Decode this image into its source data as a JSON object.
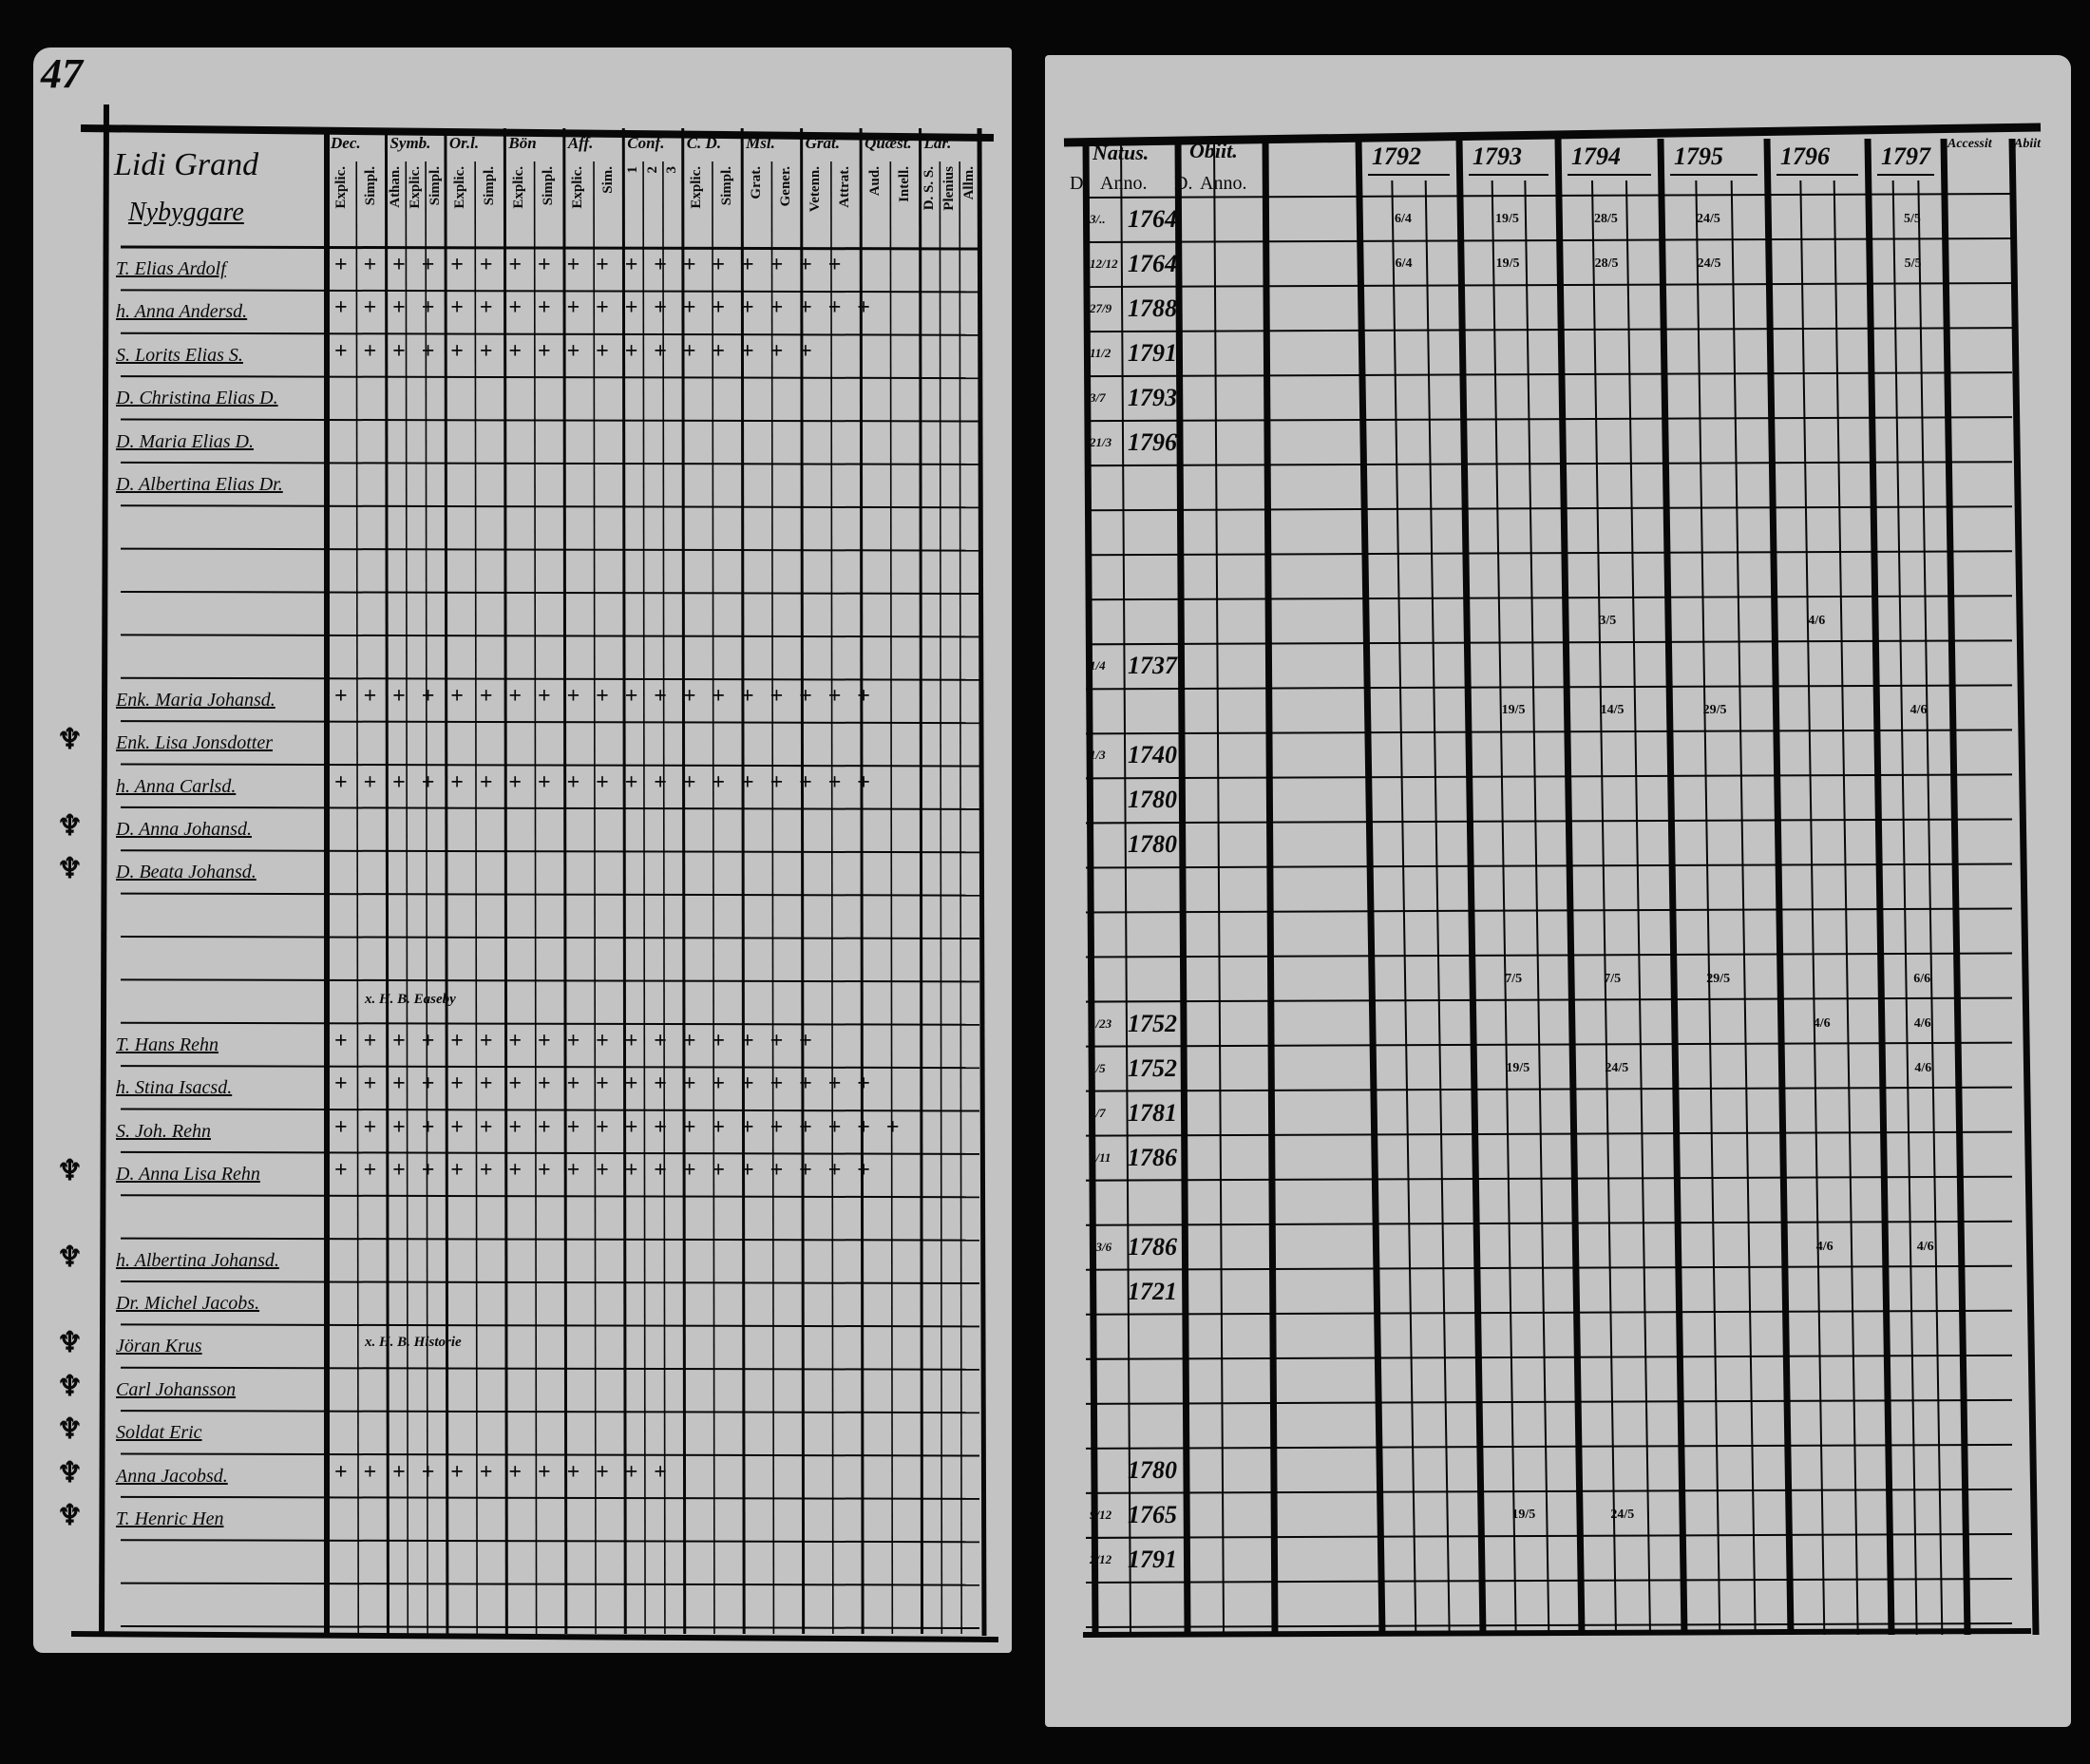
{
  "page_number": "47",
  "left": {
    "household_heading": "Lidi Grand",
    "subheading": "Nybyggare",
    "column_groups": [
      {
        "label": "Dec.",
        "sub": [
          "Explic.",
          "Simpl."
        ]
      },
      {
        "label": "Symb.",
        "sub": [
          "Athan.",
          "Explic.",
          "Simpl."
        ]
      },
      {
        "label": "Or.l.",
        "sub": [
          "Explic.",
          "Simpl."
        ]
      },
      {
        "label": "Bön",
        "sub": [
          "Explic.",
          "Simpl."
        ]
      },
      {
        "label": "Aff.",
        "sub": [
          "Explic.",
          "Sim."
        ]
      },
      {
        "label": "Conf.",
        "sub": [
          "1",
          "2",
          "3"
        ]
      },
      {
        "label": "C. D.",
        "sub": [
          "Explic.",
          "Simpl."
        ]
      },
      {
        "label": "Msl.",
        "sub": [
          "Grat.",
          "Gener."
        ]
      },
      {
        "label": "Grat.",
        "sub": [
          "Vetenn.",
          "Attrat."
        ]
      },
      {
        "label": "Quæst.",
        "sub": [
          "Aud.",
          "Intell."
        ]
      },
      {
        "label": "Lär.",
        "sub": [
          "D. S. S.",
          "Plenius",
          "Allm."
        ]
      }
    ],
    "rows": [
      {
        "name": "T. Elias Ardolf",
        "marks": 18,
        "symbol": ""
      },
      {
        "name": "h. Anna Andersd.",
        "marks": 19,
        "symbol": ""
      },
      {
        "name": "S. Lorits Elias S.",
        "marks": 17,
        "symbol": ""
      },
      {
        "name": "D. Christina Elias D.",
        "marks": 0,
        "symbol": ""
      },
      {
        "name": "D. Maria Elias D.",
        "marks": 0,
        "symbol": ""
      },
      {
        "name": "D. Albertina Elias Dr.",
        "marks": 0,
        "symbol": ""
      },
      {
        "name": "",
        "marks": 0,
        "symbol": ""
      },
      {
        "name": "",
        "marks": 0,
        "symbol": ""
      },
      {
        "name": "",
        "marks": 0,
        "symbol": ""
      },
      {
        "name": "",
        "marks": 0,
        "symbol": ""
      },
      {
        "name": "Enk. Maria Johansd.",
        "marks": 19,
        "symbol": ""
      },
      {
        "name": "Enk. Lisa Jonsdotter",
        "marks": 0,
        "symbol": "♆"
      },
      {
        "name": "h. Anna Carlsd.",
        "marks": 19,
        "symbol": ""
      },
      {
        "name": "D. Anna Johansd.",
        "marks": 0,
        "symbol": "♆"
      },
      {
        "name": "D. Beata Johansd.",
        "marks": 0,
        "symbol": "♆"
      },
      {
        "name": "",
        "marks": 0,
        "symbol": ""
      },
      {
        "name": "",
        "marks": 0,
        "symbol": ""
      },
      {
        "name": "",
        "marks": 0,
        "symbol": ""
      },
      {
        "name": "T. Hans Rehn",
        "marks": 17,
        "note": "x. H. B. Easeby",
        "symbol": ""
      },
      {
        "name": "h. Stina Isacsd.",
        "marks": 19,
        "symbol": ""
      },
      {
        "name": "S. Joh. Rehn",
        "marks": 20,
        "symbol": ""
      },
      {
        "name": "D. Anna Lisa Rehn",
        "marks": 19,
        "symbol": "♆"
      },
      {
        "name": "",
        "marks": 0,
        "symbol": ""
      },
      {
        "name": "h. Albertina Johansd.",
        "marks": 0,
        "symbol": "♆"
      },
      {
        "name": "Dr. Michel Jacobs.",
        "marks": 0,
        "symbol": ""
      },
      {
        "name": "Jöran Krus",
        "marks": 0,
        "note": "x. H. B. Historie",
        "symbol": "♆"
      },
      {
        "name": "Carl Johansson",
        "marks": 0,
        "symbol": "♆"
      },
      {
        "name": "Soldat Eric",
        "marks": 0,
        "symbol": "♆"
      },
      {
        "name": "Anna Jacobsd.",
        "marks": 12,
        "symbol": "♆"
      },
      {
        "name": "T. Henric Hen",
        "marks": 0,
        "symbol": "♆"
      },
      {
        "name": "",
        "marks": 0,
        "symbol": ""
      },
      {
        "name": "",
        "marks": 0,
        "symbol": ""
      }
    ]
  },
  "right": {
    "natus_label": "Natus.",
    "obiit_label": "Obiit.",
    "day_label": "D.",
    "anno_label": "Anno.",
    "years": [
      "1792",
      "1793",
      "1794",
      "1795",
      "1796",
      "1797"
    ],
    "accessit_label": "Accessit",
    "abiit_label": "Abiit",
    "rows": [
      {
        "day": "3/..",
        "anno": "1764",
        "notes": {
          "1792": "6/4",
          "1793": "19/5",
          "1794": "28/5",
          "1795": "24/5",
          "1797": "5/5"
        }
      },
      {
        "day": "12/12",
        "anno": "1764",
        "notes": {
          "1792": "6/4",
          "1793": "19/5",
          "1794": "28/5",
          "1795": "24/5",
          "1797": "5/5"
        }
      },
      {
        "day": "27/9",
        "anno": "1788",
        "notes": {}
      },
      {
        "day": "11/2",
        "anno": "1791",
        "notes": {}
      },
      {
        "day": "3/7",
        "anno": "1793",
        "notes": {}
      },
      {
        "day": "21/3",
        "anno": "1796",
        "notes": {}
      },
      {
        "day": "",
        "anno": "",
        "notes": {}
      },
      {
        "day": "",
        "anno": "",
        "notes": {}
      },
      {
        "day": "",
        "anno": "",
        "notes": {}
      },
      {
        "day": "",
        "anno": "",
        "notes": {
          "1794": "3/5",
          "1796": "4/6"
        }
      },
      {
        "day": "1/4",
        "anno": "1737",
        "notes": {}
      },
      {
        "day": "",
        "anno": "",
        "notes": {
          "1793": "19/5",
          "1794": "14/5",
          "1795": "29/5",
          "1797": "4/6"
        }
      },
      {
        "day": "1/3",
        "anno": "1740",
        "notes": {}
      },
      {
        "day": "",
        "anno": "1780",
        "notes": {}
      },
      {
        "day": "",
        "anno": "1780",
        "notes": {}
      },
      {
        "day": "",
        "anno": "",
        "notes": {}
      },
      {
        "day": "",
        "anno": "",
        "notes": {}
      },
      {
        "day": "",
        "anno": "",
        "notes": {
          "1793": "7/5",
          "1794": "7/5",
          "1795": "29/5",
          "1797": "6/6"
        }
      },
      {
        "day": "1/23",
        "anno": "1752",
        "notes": {
          "1796": "4/6",
          "1797": "4/6"
        }
      },
      {
        "day": "1/5",
        "anno": "1752",
        "notes": {
          "1793": "19/5",
          "1794": "24/5",
          "1797": "4/6"
        }
      },
      {
        "day": "5/7",
        "anno": "1781",
        "notes": {}
      },
      {
        "day": "9/11",
        "anno": "1786",
        "notes": {}
      },
      {
        "day": "",
        "anno": "",
        "notes": {}
      },
      {
        "day": "13/6",
        "anno": "1786",
        "notes": {
          "1796": "4/6",
          "1797": "4/6"
        }
      },
      {
        "day": "",
        "anno": "1721",
        "notes": {}
      },
      {
        "day": "",
        "anno": "",
        "notes": {}
      },
      {
        "day": "",
        "anno": "",
        "notes": {}
      },
      {
        "day": "",
        "anno": "",
        "notes": {}
      },
      {
        "day": "",
        "anno": "1780",
        "notes": {}
      },
      {
        "day": "9/12",
        "anno": "1765",
        "notes": {
          "1793": "19/5",
          "1794": "24/5"
        }
      },
      {
        "day": "2/12",
        "anno": "1791",
        "notes": {}
      },
      {
        "day": "",
        "anno": "",
        "notes": {}
      }
    ]
  }
}
